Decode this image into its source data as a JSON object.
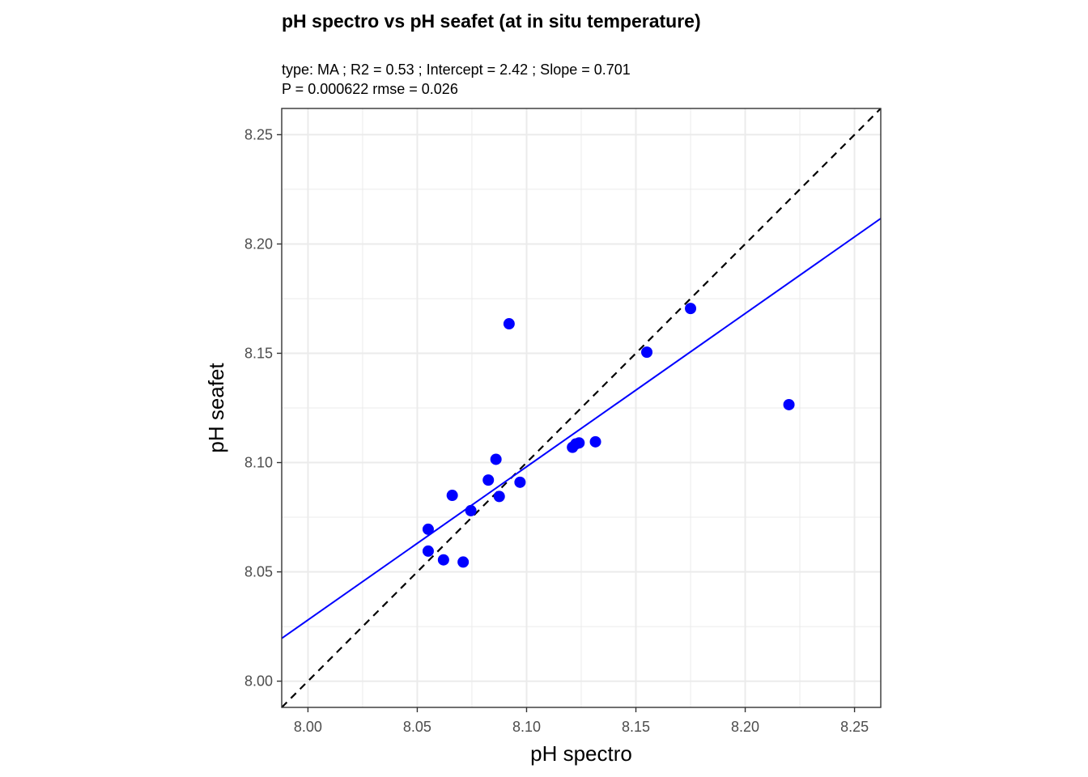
{
  "chart_data": {
    "type": "scatter",
    "title": "pH spectro vs pH seafet (at in situ temperature)",
    "subtitle_lines": [
      "type:  MA ; R2 =  0.53 ; Intercept = 2.42 ; Slope = 0.701",
      "P = 0.000622 rmse = 0.026"
    ],
    "xlabel": "pH spectro",
    "ylabel": "pH seafet",
    "xlim": [
      7.988,
      8.262
    ],
    "ylim": [
      7.988,
      8.262
    ],
    "x_ticks": [
      "8.00",
      "8.05",
      "8.10",
      "8.15",
      "8.20",
      "8.25"
    ],
    "y_ticks": [
      "8.00",
      "8.05",
      "8.10",
      "8.15",
      "8.20",
      "8.25"
    ],
    "grid": true,
    "points": [
      {
        "x": 8.055,
        "y": 8.0695
      },
      {
        "x": 8.055,
        "y": 8.0595
      },
      {
        "x": 8.062,
        "y": 8.0555
      },
      {
        "x": 8.066,
        "y": 8.085
      },
      {
        "x": 8.071,
        "y": 8.0545
      },
      {
        "x": 8.0745,
        "y": 8.078
      },
      {
        "x": 8.0825,
        "y": 8.092
      },
      {
        "x": 8.086,
        "y": 8.1015
      },
      {
        "x": 8.0875,
        "y": 8.0845
      },
      {
        "x": 8.092,
        "y": 8.1635
      },
      {
        "x": 8.097,
        "y": 8.091
      },
      {
        "x": 8.121,
        "y": 8.107
      },
      {
        "x": 8.1225,
        "y": 8.1085
      },
      {
        "x": 8.124,
        "y": 8.109
      },
      {
        "x": 8.1315,
        "y": 8.1095
      },
      {
        "x": 8.155,
        "y": 8.1505
      },
      {
        "x": 8.175,
        "y": 8.1705
      },
      {
        "x": 8.22,
        "y": 8.1265
      }
    ],
    "regression_line": {
      "type": "MA",
      "intercept": 2.42,
      "slope": 0.701,
      "color": "#0000ff"
    },
    "identity_line": {
      "style": "dashed",
      "color": "#000000"
    },
    "point_color": "#0000ff"
  }
}
